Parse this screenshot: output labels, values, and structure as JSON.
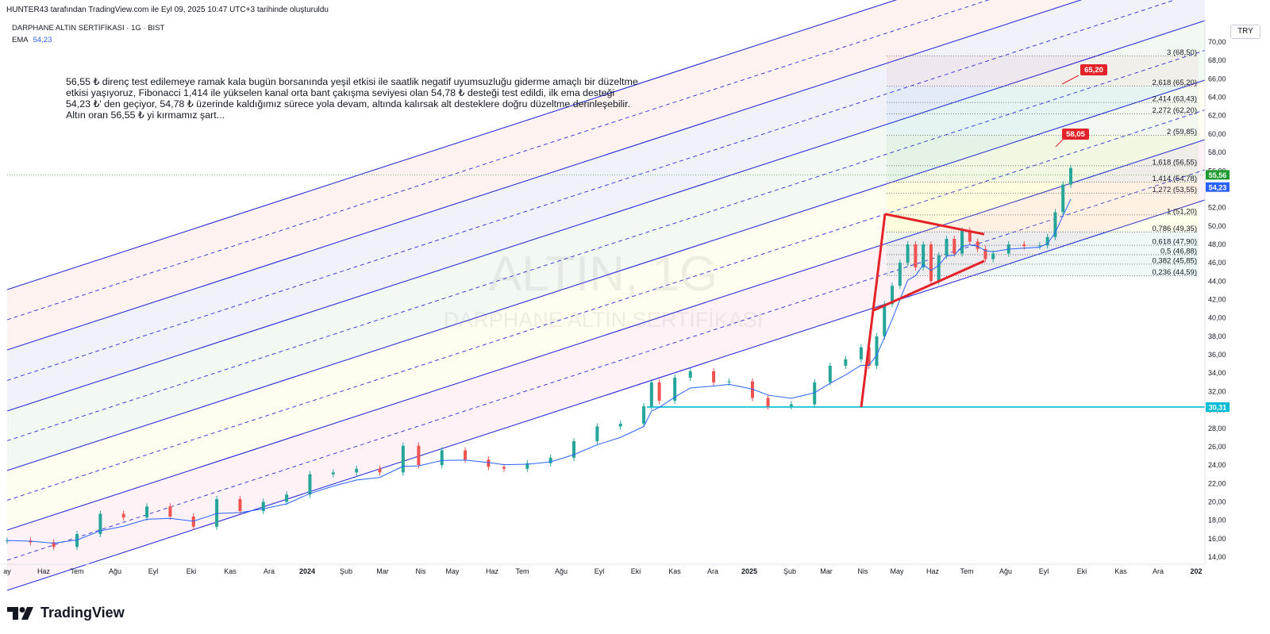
{
  "header": "HUNTER43 tarafından TradingView.com ile Eyl 09, 2025 10:47 UTC+3 tarihinde oluşturuldu",
  "chart_title": "DARPHANE ALTIN SERTİFİKASI · 1G · BIST",
  "ema": {
    "label": "EMA",
    "value": "54,23"
  },
  "currency": "TRY",
  "note": "56,55 ₺ direnç test edilemeye ramak kala bugün borsanında yeşil etkisi ile saatlik negatif uyumsuzluğu giderme amaçlı bir düzeltme\netkisi yaşıyoruz, Fibonacci 1,414 ile yükselen kanal orta bant çakışma seviyesi olan 54,78 ₺ desteği test edildi, ilk ema desteği\n54,23 ₺' den geçiyor, 54,78 ₺ üzerinde kaldığımız sürece yola devam, altında kalırsak alt desteklere doğru düzeltme derinleşebilir.\nAltın oran 56,55 ₺ yi kırmamız şart...",
  "watermark": {
    "symbol": "ALTIN, 1G",
    "name": "DARPHANE ALTIN SERTİFİKASI"
  },
  "logo": "TradingView",
  "colors": {
    "up": "#26a69a",
    "down": "#ef5350",
    "channel": "#2a2ed6",
    "fib": "#555",
    "hline": "#00bcd4",
    "pattern": "#e3222a",
    "ema": "#2962ff",
    "price_tag": "#1e9b2e"
  },
  "chart_data": {
    "type": "line",
    "x_ticks": [
      "ay",
      "Haz",
      "Tem",
      "Ağu",
      "Eyl",
      "Eki",
      "Kas",
      "Ara",
      "2024",
      "Şub",
      "Mar",
      "Nis",
      "May",
      "Haz",
      "Tem",
      "Ağu",
      "Eyl",
      "Eki",
      "Kas",
      "Ara",
      "2025",
      "Şub",
      "Mar",
      "Nis",
      "May",
      "Haz",
      "Tem",
      "Ağu",
      "Eyl",
      "Eki",
      "Kas",
      "Ara",
      "202"
    ],
    "y_ticks": [
      "70,00",
      "68,00",
      "66,00",
      "64,00",
      "62,00",
      "60,00",
      "58,00",
      "56,00",
      "52,00",
      "50,00",
      "48,00",
      "46,00",
      "44,00",
      "42,00",
      "40,00",
      "38,00",
      "36,00",
      "34,00",
      "32,00",
      "30,00",
      "28,00",
      "26,00",
      "24,00",
      "22,00",
      "20,00",
      "18,00",
      "16,00",
      "14,00"
    ],
    "ylim": [
      13,
      72
    ],
    "series": [
      {
        "name": "",
        "points": [
          [
            0,
            15.8
          ],
          [
            3,
            15.6
          ],
          [
            6,
            15.1
          ],
          [
            9,
            16.5
          ],
          [
            12,
            18.7
          ],
          [
            15,
            18.3
          ],
          [
            18,
            19.5
          ],
          [
            21,
            18.4
          ],
          [
            24,
            17.3
          ],
          [
            27,
            20.3
          ],
          [
            30,
            19.0
          ],
          [
            33,
            20.0
          ],
          [
            36,
            20.8
          ],
          [
            39,
            23.0
          ],
          [
            42,
            23.2
          ],
          [
            45,
            23.6
          ],
          [
            48,
            23.2
          ],
          [
            51,
            26.1
          ],
          [
            53,
            24.0
          ],
          [
            56,
            25.6
          ],
          [
            59,
            24.6
          ],
          [
            62,
            23.8
          ],
          [
            64,
            23.6
          ],
          [
            67,
            24.2
          ],
          [
            70,
            24.8
          ],
          [
            73,
            26.6
          ],
          [
            76,
            28.2
          ],
          [
            79,
            28.5
          ],
          [
            82,
            30.4
          ],
          [
            83,
            33.0
          ],
          [
            84,
            31.0
          ],
          [
            86,
            33.5
          ],
          [
            88,
            34.2
          ],
          [
            91,
            33.0
          ],
          [
            93,
            33.1
          ],
          [
            96,
            31.3
          ],
          [
            98,
            30.4
          ],
          [
            101,
            30.6
          ],
          [
            104,
            33.0
          ],
          [
            106,
            34.8
          ],
          [
            108,
            35.5
          ],
          [
            110,
            36.8
          ],
          [
            111,
            34.8
          ],
          [
            112,
            38.0
          ],
          [
            113,
            41.5
          ],
          [
            114,
            43.5
          ],
          [
            115,
            46.0
          ],
          [
            116,
            48.0
          ],
          [
            117,
            45.5
          ],
          [
            118,
            48.0
          ],
          [
            119,
            44.0
          ],
          [
            120,
            46.8
          ],
          [
            121,
            48.6
          ],
          [
            122,
            47.0
          ],
          [
            123,
            49.5
          ],
          [
            124,
            48.3
          ],
          [
            125,
            47.5
          ],
          [
            126,
            46.4
          ],
          [
            127,
            47.0
          ],
          [
            129,
            48.0
          ],
          [
            131,
            47.8
          ],
          [
            133,
            47.9
          ],
          [
            134,
            48.8
          ],
          [
            135,
            51.5
          ],
          [
            136,
            54.5
          ],
          [
            137,
            56.3
          ]
        ]
      }
    ],
    "labels": {
      "fib_levels": [
        "3 (68,50)",
        "2,618 (65,20)",
        "2,414 (63,43)",
        "2,272 (62,20)",
        "2 (59,85)",
        "1,618 (56,55)",
        "1,414 (54,78)",
        "1,272 (53,55)",
        "1 (51,20)",
        "0,786 (49,35)",
        "0,618 (47,90)",
        "0,5 (46,88)",
        "0,382 (45,85)",
        "0,236 (44,59)"
      ],
      "targets": [
        "65,20",
        "58,05"
      ],
      "price_tags": {
        "last": "55,56",
        "ema": "54,23",
        "hline": "30,31"
      }
    }
  }
}
